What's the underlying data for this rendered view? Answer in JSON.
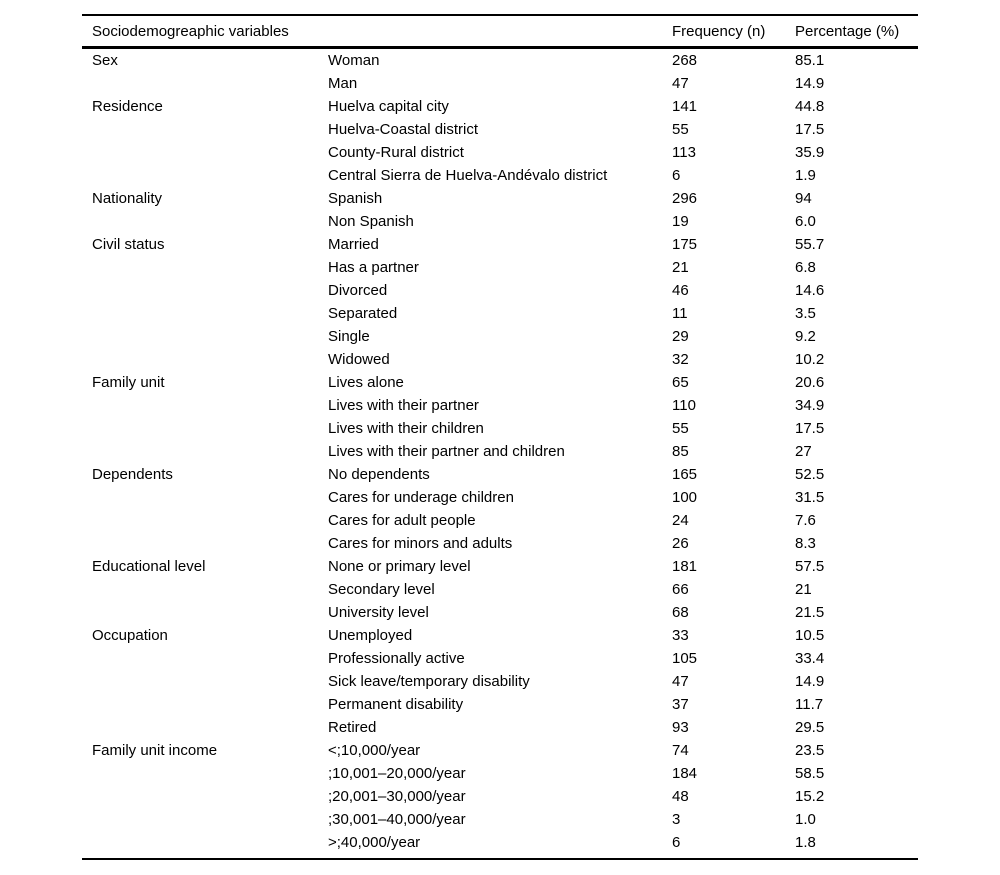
{
  "table": {
    "header": {
      "variables": "Sociodemogreaphic variables",
      "frequency": "Frequency (n)",
      "percentage": "Percentage (%)"
    },
    "rows": [
      {
        "variable": "Sex",
        "category": "Woman",
        "frequency": "268",
        "percentage": "85.1"
      },
      {
        "variable": "",
        "category": "Man",
        "frequency": "47",
        "percentage": "14.9"
      },
      {
        "variable": "Residence",
        "category": "Huelva capital city",
        "frequency": "141",
        "percentage": "44.8"
      },
      {
        "variable": "",
        "category": "Huelva-Coastal district",
        "frequency": "55",
        "percentage": "17.5"
      },
      {
        "variable": "",
        "category": "County-Rural district",
        "frequency": "113",
        "percentage": "35.9"
      },
      {
        "variable": "",
        "category": "Central Sierra de Huelva-Andévalo district",
        "frequency": "6",
        "percentage": "1.9"
      },
      {
        "variable": "Nationality",
        "category": "Spanish",
        "frequency": "296",
        "percentage": "94"
      },
      {
        "variable": "",
        "category": "Non Spanish",
        "frequency": "19",
        "percentage": "6.0"
      },
      {
        "variable": "Civil status",
        "category": "Married",
        "frequency": "175",
        "percentage": "55.7"
      },
      {
        "variable": "",
        "category": "Has a partner",
        "frequency": "21",
        "percentage": "6.8"
      },
      {
        "variable": "",
        "category": "Divorced",
        "frequency": "46",
        "percentage": "14.6"
      },
      {
        "variable": "",
        "category": "Separated",
        "frequency": "11",
        "percentage": "3.5"
      },
      {
        "variable": "",
        "category": "Single",
        "frequency": "29",
        "percentage": "9.2"
      },
      {
        "variable": "",
        "category": "Widowed",
        "frequency": "32",
        "percentage": "10.2"
      },
      {
        "variable": "Family unit",
        "category": "Lives alone",
        "frequency": "65",
        "percentage": "20.6"
      },
      {
        "variable": "",
        "category": "Lives with their partner",
        "frequency": "110",
        "percentage": "34.9"
      },
      {
        "variable": "",
        "category": "Lives with their children",
        "frequency": "55",
        "percentage": "17.5"
      },
      {
        "variable": "",
        "category": "Lives with their partner and children",
        "frequency": "85",
        "percentage": "27"
      },
      {
        "variable": "Dependents",
        "category": "No dependents",
        "frequency": "165",
        "percentage": "52.5"
      },
      {
        "variable": "",
        "category": "Cares for underage children",
        "frequency": "100",
        "percentage": "31.5"
      },
      {
        "variable": "",
        "category": "Cares for adult people",
        "frequency": "24",
        "percentage": "7.6"
      },
      {
        "variable": "",
        "category": "Cares for minors and adults",
        "frequency": "26",
        "percentage": "8.3"
      },
      {
        "variable": "Educational level",
        "category": "None or primary level",
        "frequency": "181",
        "percentage": "57.5"
      },
      {
        "variable": "",
        "category": "Secondary level",
        "frequency": "66",
        "percentage": "21"
      },
      {
        "variable": "",
        "category": "University level",
        "frequency": "68",
        "percentage": "21.5"
      },
      {
        "variable": "Occupation",
        "category": "Unemployed",
        "frequency": "33",
        "percentage": "10.5"
      },
      {
        "variable": "",
        "category": "Professionally active",
        "frequency": "105",
        "percentage": "33.4"
      },
      {
        "variable": "",
        "category": "Sick leave/temporary disability",
        "frequency": "47",
        "percentage": "14.9"
      },
      {
        "variable": "",
        "category": "Permanent disability",
        "frequency": "37",
        "percentage": "11.7"
      },
      {
        "variable": "",
        "category": "Retired",
        "frequency": "93",
        "percentage": "29.5"
      },
      {
        "variable": "Family unit income",
        "category": "<;10,000/year",
        "frequency": "74",
        "percentage": "23.5"
      },
      {
        "variable": "",
        "category": ";10,001–20,000/year",
        "frequency": "184",
        "percentage": "58.5"
      },
      {
        "variable": "",
        "category": ";20,001–30,000/year",
        "frequency": "48",
        "percentage": "15.2"
      },
      {
        "variable": "",
        "category": ";30,001–40,000/year",
        "frequency": "3",
        "percentage": "1.0"
      },
      {
        "variable": "",
        "category": ">;40,000/year",
        "frequency": "6",
        "percentage": "1.8"
      }
    ]
  },
  "colors": {
    "background": "#ffffff",
    "text": "#000000",
    "rule": "#000000"
  }
}
